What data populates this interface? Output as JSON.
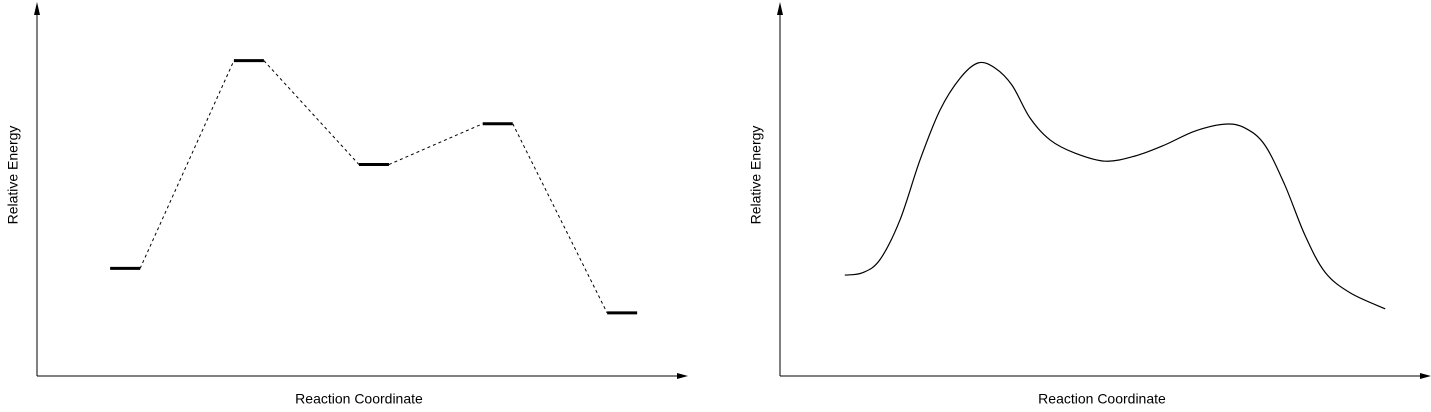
{
  "chart_data": [
    {
      "type": "energy-levels",
      "xlabel": "Reaction Coordinate",
      "ylabel": "Relative Energy",
      "x": [
        13.6,
        32.7,
        52,
        71.1,
        90.3
      ],
      "values": [
        29,
        85,
        57,
        68,
        17
      ],
      "xlim": [
        0,
        100
      ],
      "ylim": [
        0,
        100
      ],
      "color": "#000000"
    },
    {
      "type": "line",
      "xlabel": "Reaction Coordinate",
      "ylabel": "Relative Energy",
      "x": [
        10.0,
        12.7,
        15.4,
        18.5,
        21.6,
        24.7,
        27.8,
        30.6,
        33.2,
        35.8,
        38.6,
        41.7,
        45.5,
        50.2,
        54.8,
        59.4,
        64.0,
        68.7,
        71.8,
        74.8,
        77.9,
        81.0,
        84.1,
        88.0,
        93.4
      ],
      "values": [
        27.2,
        27.8,
        31.3,
        42.0,
        58.2,
        71.7,
        80.3,
        84.4,
        83.0,
        78.4,
        69.5,
        63.6,
        60.1,
        57.9,
        59.3,
        62.3,
        66.0,
        67.9,
        66.8,
        62.3,
        51.5,
        38.0,
        28.0,
        22.4,
        18.1
      ],
      "xlim": [
        0,
        100
      ],
      "ylim": [
        0,
        100
      ],
      "color": "#000000"
    }
  ]
}
